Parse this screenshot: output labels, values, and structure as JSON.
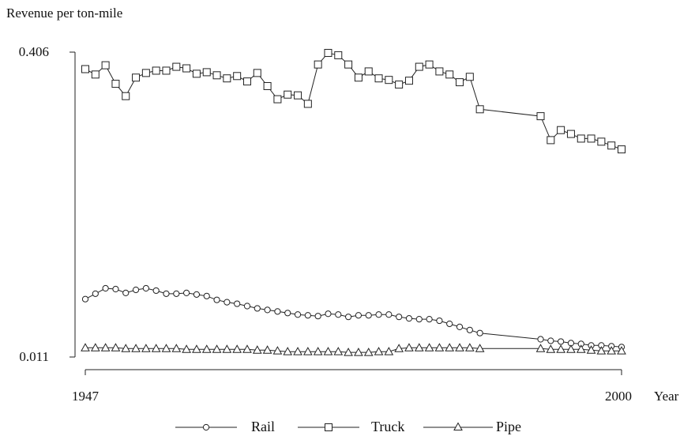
{
  "chart_data": {
    "type": "line",
    "ylabel": "Revenue per ton-mile",
    "xlabel": "Year",
    "xlim": [
      1947,
      2000
    ],
    "ylim": [
      0.011,
      0.406
    ],
    "x_ticks": [
      "1947",
      "2000"
    ],
    "y_ticks": [
      "0.406",
      "0.011"
    ],
    "legend_position": "bottom",
    "grid": false,
    "colors": {
      "line": "#222222",
      "background": "#ffffff"
    },
    "series": [
      {
        "name": "Rail",
        "marker": "circle",
        "x": [
          1947,
          1948,
          1949,
          1950,
          1951,
          1952,
          1953,
          1954,
          1955,
          1956,
          1957,
          1958,
          1959,
          1960,
          1961,
          1962,
          1963,
          1964,
          1965,
          1966,
          1967,
          1968,
          1969,
          1970,
          1971,
          1972,
          1973,
          1974,
          1975,
          1976,
          1977,
          1978,
          1979,
          1980,
          1981,
          1982,
          1983,
          1984,
          1985,
          1986,
          1992,
          1993,
          1994,
          1995,
          1996,
          1997,
          1998,
          1999,
          2000
        ],
        "values": [
          0.086,
          0.093,
          0.1,
          0.099,
          0.094,
          0.098,
          0.1,
          0.097,
          0.093,
          0.093,
          0.094,
          0.092,
          0.09,
          0.085,
          0.082,
          0.08,
          0.077,
          0.074,
          0.072,
          0.07,
          0.068,
          0.066,
          0.065,
          0.064,
          0.067,
          0.066,
          0.063,
          0.065,
          0.065,
          0.066,
          0.066,
          0.063,
          0.061,
          0.06,
          0.06,
          0.058,
          0.054,
          0.05,
          0.046,
          0.042,
          0.034,
          0.032,
          0.031,
          0.029,
          0.028,
          0.026,
          0.026,
          0.025,
          0.024
        ]
      },
      {
        "name": "Truck",
        "marker": "square",
        "x": [
          1947,
          1948,
          1949,
          1950,
          1951,
          1952,
          1953,
          1954,
          1955,
          1956,
          1957,
          1958,
          1959,
          1960,
          1961,
          1962,
          1963,
          1964,
          1965,
          1966,
          1967,
          1968,
          1969,
          1970,
          1971,
          1972,
          1973,
          1974,
          1975,
          1976,
          1977,
          1978,
          1979,
          1980,
          1981,
          1982,
          1983,
          1984,
          1985,
          1986,
          1992,
          1993,
          1994,
          1995,
          1996,
          1997,
          1998,
          1999,
          2000
        ],
        "values": [
          0.384,
          0.377,
          0.389,
          0.365,
          0.349,
          0.373,
          0.379,
          0.382,
          0.382,
          0.387,
          0.385,
          0.378,
          0.38,
          0.376,
          0.372,
          0.375,
          0.368,
          0.379,
          0.362,
          0.345,
          0.351,
          0.35,
          0.339,
          0.39,
          0.405,
          0.402,
          0.39,
          0.373,
          0.381,
          0.372,
          0.37,
          0.364,
          0.369,
          0.387,
          0.39,
          0.381,
          0.377,
          0.367,
          0.374,
          0.332,
          0.323,
          0.292,
          0.305,
          0.3,
          0.294,
          0.294,
          0.29,
          0.285,
          0.28
        ]
      },
      {
        "name": "Pipe",
        "marker": "triangle",
        "x": [
          1947,
          1948,
          1949,
          1950,
          1951,
          1952,
          1953,
          1954,
          1955,
          1956,
          1957,
          1958,
          1959,
          1960,
          1961,
          1962,
          1963,
          1964,
          1965,
          1966,
          1967,
          1968,
          1969,
          1970,
          1971,
          1972,
          1973,
          1974,
          1975,
          1976,
          1977,
          1978,
          1979,
          1980,
          1981,
          1982,
          1983,
          1984,
          1985,
          1986,
          1992,
          1993,
          1994,
          1995,
          1996,
          1997,
          1998,
          1999,
          2000
        ],
        "values": [
          0.023,
          0.023,
          0.023,
          0.023,
          0.022,
          0.022,
          0.022,
          0.022,
          0.022,
          0.022,
          0.021,
          0.021,
          0.021,
          0.021,
          0.021,
          0.021,
          0.021,
          0.02,
          0.02,
          0.019,
          0.018,
          0.018,
          0.018,
          0.018,
          0.018,
          0.018,
          0.017,
          0.017,
          0.017,
          0.018,
          0.018,
          0.022,
          0.023,
          0.023,
          0.023,
          0.023,
          0.023,
          0.023,
          0.023,
          0.022,
          0.022,
          0.021,
          0.021,
          0.021,
          0.021,
          0.02,
          0.019,
          0.019,
          0.019
        ]
      }
    ]
  }
}
